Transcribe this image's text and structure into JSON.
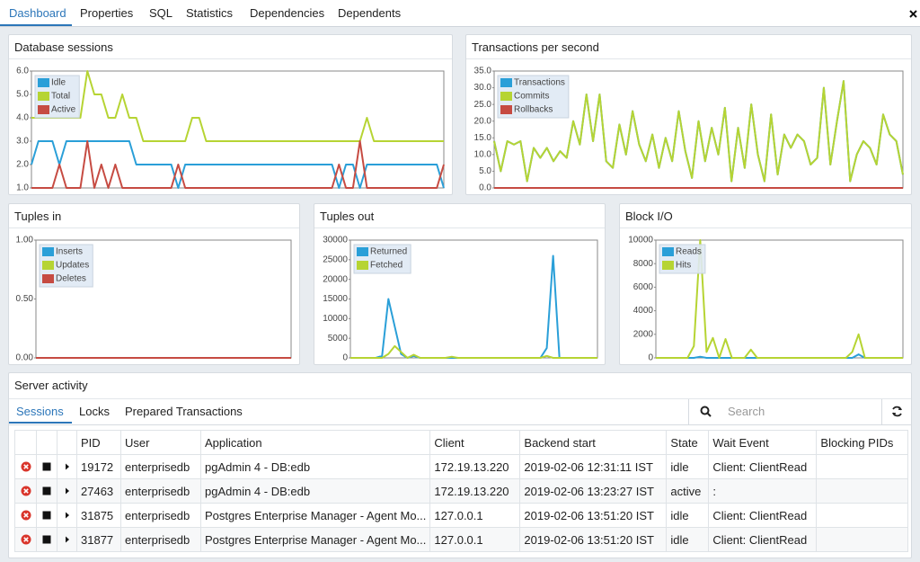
{
  "tabs": [
    "Dashboard",
    "Properties",
    "SQL",
    "Statistics",
    "Dependencies",
    "Dependents"
  ],
  "chart_data": [
    {
      "type": "line",
      "title": "Database sessions",
      "legend": "top-left",
      "grid": false,
      "ylim": [
        1,
        6
      ],
      "yticks": [
        {
          "value": 6,
          "label": "6.0"
        },
        {
          "value": 5,
          "label": "5.0"
        },
        {
          "value": 4,
          "label": "4.0"
        },
        {
          "value": 3,
          "label": "3.0"
        },
        {
          "value": 2,
          "label": "2.0"
        },
        {
          "value": 1,
          "label": "1.0"
        }
      ],
      "series": [
        {
          "name": "Idle",
          "color": "#2a9fd8",
          "values": [
            2,
            3,
            3,
            3,
            2,
            3,
            3,
            3,
            3,
            3,
            3,
            3,
            3,
            3,
            3,
            2,
            2,
            2,
            2,
            2,
            2,
            1,
            2,
            2,
            2,
            2,
            2,
            2,
            2,
            2,
            2,
            2,
            2,
            2,
            2,
            2,
            2,
            2,
            2,
            2,
            2,
            2,
            2,
            2,
            1,
            2,
            2,
            1,
            2,
            2,
            2,
            2,
            2,
            2,
            2,
            2,
            2,
            2,
            2,
            1
          ]
        },
        {
          "name": "Total",
          "color": "#b6d433",
          "values": [
            4,
            4,
            4,
            4,
            4,
            4,
            4,
            4,
            6,
            5,
            5,
            4,
            4,
            5,
            4,
            4,
            3,
            3,
            3,
            3,
            3,
            3,
            3,
            4,
            4,
            3,
            3,
            3,
            3,
            3,
            3,
            3,
            3,
            3,
            3,
            3,
            3,
            3,
            3,
            3,
            3,
            3,
            3,
            3,
            3,
            3,
            3,
            3,
            4,
            3,
            3,
            3,
            3,
            3,
            3,
            3,
            3,
            3,
            3,
            3
          ]
        },
        {
          "name": "Active",
          "color": "#c64b42",
          "values": [
            1,
            1,
            1,
            1,
            2,
            1,
            1,
            1,
            3,
            1,
            2,
            1,
            2,
            1,
            1,
            1,
            1,
            1,
            1,
            1,
            1,
            2,
            1,
            1,
            1,
            1,
            1,
            1,
            1,
            1,
            1,
            1,
            1,
            1,
            1,
            1,
            1,
            1,
            1,
            1,
            1,
            1,
            1,
            1,
            2,
            1,
            1,
            3,
            1,
            1,
            1,
            1,
            1,
            1,
            1,
            1,
            1,
            1,
            1,
            2
          ]
        }
      ]
    },
    {
      "type": "line",
      "title": "Transactions per second",
      "legend": "top-left",
      "grid": false,
      "ylim": [
        0,
        35
      ],
      "yticks": [
        {
          "value": 35,
          "label": "35.0"
        },
        {
          "value": 30,
          "label": "30.0"
        },
        {
          "value": 25,
          "label": "25.0"
        },
        {
          "value": 20,
          "label": "20.0"
        },
        {
          "value": 15,
          "label": "15.0"
        },
        {
          "value": 10,
          "label": "10.0"
        },
        {
          "value": 5,
          "label": "5.0"
        },
        {
          "value": 0,
          "label": "0.0"
        }
      ],
      "series": [
        {
          "name": "Transactions",
          "color": "#2a9fd8",
          "values": [
            14,
            5,
            14,
            13,
            14,
            2,
            12,
            9,
            12,
            8,
            11,
            9,
            20,
            13,
            28,
            14,
            28,
            8,
            6,
            19,
            10,
            23,
            13,
            8,
            16,
            6,
            15,
            8,
            23,
            11,
            3,
            20,
            8,
            18,
            10,
            24,
            2,
            18,
            6,
            25,
            10,
            2,
            22,
            4,
            16,
            12,
            16,
            14,
            7,
            9,
            30,
            7,
            20,
            32,
            2,
            10,
            14,
            12,
            7,
            22,
            16,
            14,
            4
          ]
        },
        {
          "name": "Commits",
          "color": "#b6d433",
          "values": [
            14,
            5,
            14,
            13,
            14,
            2,
            12,
            9,
            12,
            8,
            11,
            9,
            20,
            13,
            28,
            14,
            28,
            8,
            6,
            19,
            10,
            23,
            13,
            8,
            16,
            6,
            15,
            8,
            23,
            11,
            3,
            20,
            8,
            18,
            10,
            24,
            2,
            18,
            6,
            25,
            10,
            2,
            22,
            4,
            16,
            12,
            16,
            14,
            7,
            9,
            30,
            7,
            20,
            32,
            2,
            10,
            14,
            12,
            7,
            22,
            16,
            14,
            4
          ]
        },
        {
          "name": "Rollbacks",
          "color": "#c64b42",
          "values": [
            0,
            0,
            0,
            0,
            0,
            0,
            0,
            0,
            0,
            0,
            0,
            0,
            0,
            0,
            0,
            0,
            0,
            0,
            0,
            0,
            0,
            0,
            0,
            0,
            0,
            0,
            0,
            0,
            0,
            0,
            0,
            0,
            0,
            0,
            0,
            0,
            0,
            0,
            0,
            0,
            0,
            0,
            0,
            0,
            0,
            0,
            0,
            0,
            0,
            0,
            0,
            0,
            0,
            0,
            0,
            0,
            0,
            0,
            0,
            0,
            0,
            0,
            0
          ]
        }
      ]
    },
    {
      "type": "line",
      "title": "Tuples in",
      "legend": "top-left",
      "grid": false,
      "ylim": [
        0,
        1
      ],
      "yticks": [
        {
          "value": 1,
          "label": "1.00"
        },
        {
          "value": 0.5,
          "label": "0.50"
        },
        {
          "value": 0,
          "label": "0.00"
        }
      ],
      "series": [
        {
          "name": "Inserts",
          "color": "#2a9fd8",
          "values": [
            0,
            0,
            0,
            0,
            0,
            0,
            0,
            0,
            0,
            0
          ]
        },
        {
          "name": "Updates",
          "color": "#b6d433",
          "values": [
            0,
            0,
            0,
            0,
            0,
            0,
            0,
            0,
            0,
            0
          ]
        },
        {
          "name": "Deletes",
          "color": "#c64b42",
          "values": [
            0,
            0,
            0,
            0,
            0,
            0,
            0,
            0,
            0,
            0
          ]
        }
      ]
    },
    {
      "type": "line",
      "title": "Tuples out",
      "legend": "top-left",
      "grid": false,
      "ylim": [
        0,
        30000
      ],
      "yticks": [
        30000,
        25000,
        20000,
        15000,
        10000,
        5000,
        0
      ],
      "series": [
        {
          "name": "Returned",
          "color": "#2a9fd8",
          "values": [
            0,
            0,
            0,
            0,
            0,
            500,
            15000,
            8000,
            1000,
            0,
            500,
            0,
            0,
            0,
            0,
            0,
            0,
            0,
            0,
            0,
            0,
            0,
            0,
            0,
            0,
            0,
            0,
            0,
            0,
            0,
            0,
            2500,
            26000,
            0,
            0,
            0,
            0,
            0,
            0,
            0
          ]
        },
        {
          "name": "Fetched",
          "color": "#b6d433",
          "values": [
            0,
            0,
            0,
            0,
            0,
            0,
            1000,
            3000,
            1500,
            0,
            800,
            0,
            0,
            0,
            0,
            0,
            300,
            0,
            0,
            0,
            0,
            0,
            0,
            0,
            0,
            0,
            0,
            0,
            0,
            0,
            0,
            500,
            0,
            0,
            0,
            0,
            0,
            0,
            0,
            0
          ]
        }
      ]
    },
    {
      "type": "line",
      "title": "Block I/O",
      "legend": "top-left",
      "grid": false,
      "ylim": [
        0,
        10000
      ],
      "yticks": [
        10000,
        8000,
        6000,
        4000,
        2000,
        0
      ],
      "series": [
        {
          "name": "Reads",
          "color": "#2a9fd8",
          "values": [
            0,
            0,
            0,
            0,
            0,
            0,
            0,
            100,
            0,
            0,
            0,
            0,
            0,
            0,
            0,
            0,
            0,
            0,
            0,
            0,
            0,
            0,
            0,
            0,
            0,
            0,
            0,
            0,
            0,
            0,
            0,
            0,
            300,
            0,
            0,
            0,
            0,
            0,
            0,
            0
          ]
        },
        {
          "name": "Hits",
          "color": "#b6d433",
          "values": [
            0,
            0,
            0,
            0,
            0,
            0,
            1000,
            10000,
            500,
            1700,
            0,
            1600,
            0,
            0,
            0,
            700,
            0,
            0,
            0,
            0,
            0,
            0,
            0,
            0,
            0,
            0,
            0,
            0,
            0,
            0,
            0,
            500,
            2000,
            0,
            0,
            0,
            0,
            0,
            0,
            0
          ]
        }
      ]
    }
  ],
  "server_activity": {
    "title": "Server activity",
    "tabs": [
      "Sessions",
      "Locks",
      "Prepared Transactions"
    ],
    "search_placeholder": "Search",
    "table": {
      "columns": [
        "PID",
        "User",
        "Application",
        "Client",
        "Backend start",
        "State",
        "Wait Event",
        "Blocking PIDs"
      ],
      "rows": [
        [
          "19172",
          "enterprisedb",
          "pgAdmin 4 - DB:edb",
          "172.19.13.220",
          "2019-02-06 12:31:11 IST",
          "idle",
          "Client: ClientRead",
          ""
        ],
        [
          "27463",
          "enterprisedb",
          "pgAdmin 4 - DB:edb",
          "172.19.13.220",
          "2019-02-06 13:23:27 IST",
          "active",
          ":",
          ""
        ],
        [
          "31875",
          "enterprisedb",
          "Postgres Enterprise Manager - Agent Mo...",
          "127.0.0.1",
          "2019-02-06 13:51:20 IST",
          "idle",
          "Client: ClientRead",
          ""
        ],
        [
          "31877",
          "enterprisedb",
          "Postgres Enterprise Manager - Agent Mo...",
          "127.0.0.1",
          "2019-02-06 13:51:20 IST",
          "idle",
          "Client: ClientRead",
          ""
        ]
      ]
    }
  }
}
